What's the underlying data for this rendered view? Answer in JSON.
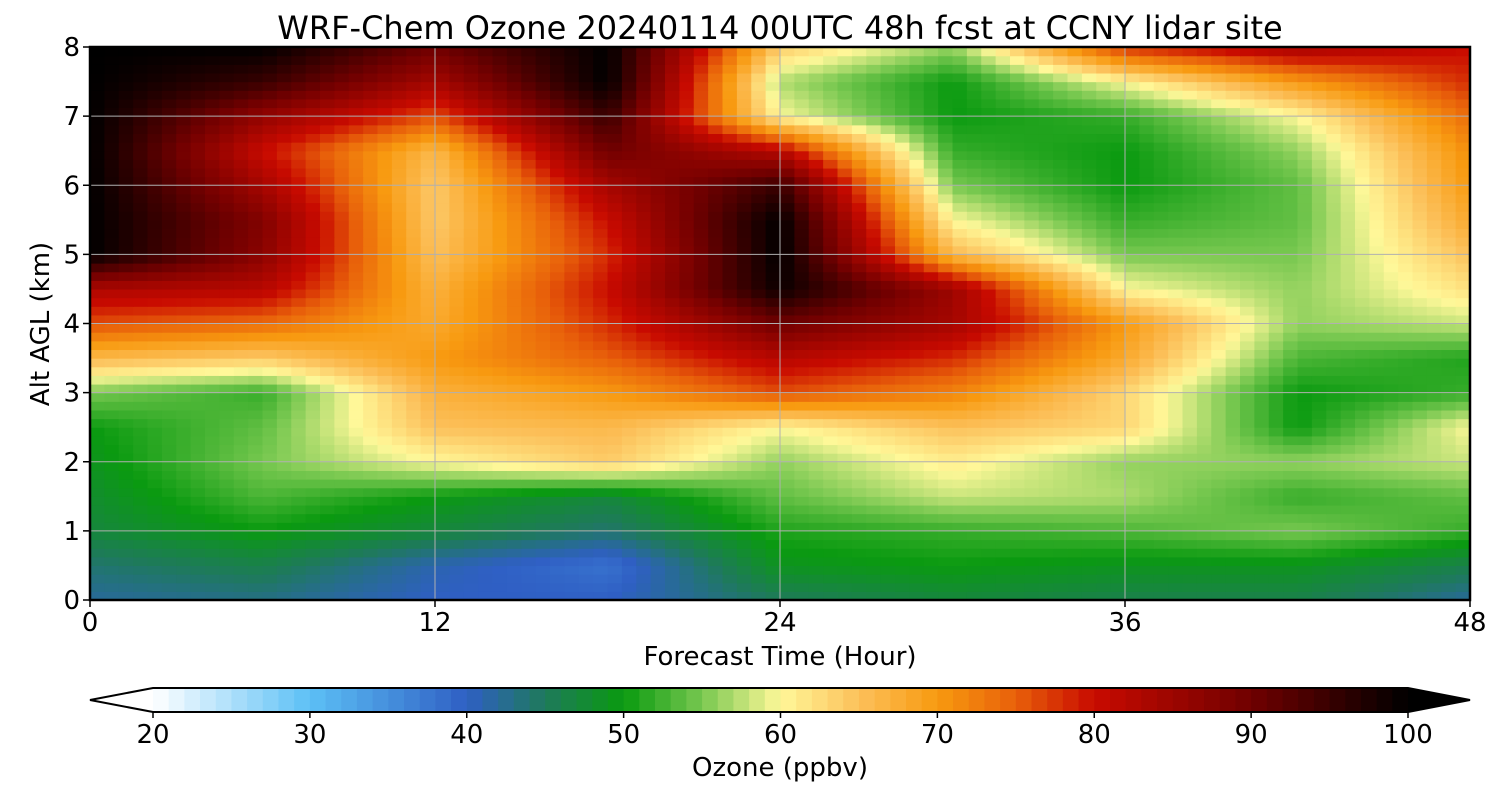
{
  "chart_data": {
    "type": "heatmap",
    "title": "WRF-Chem Ozone  20240114 00UTC 48h fcst at CCNY lidar site",
    "xlabel": "Forecast Time (Hour)",
    "ylabel": "Alt AGL (km)",
    "xlim": [
      0,
      48
    ],
    "ylim": [
      0,
      8
    ],
    "x_ticks": [
      "0",
      "12",
      "24",
      "36",
      "48"
    ],
    "y_ticks": [
      "0",
      "1",
      "2",
      "3",
      "4",
      "5",
      "6",
      "7",
      "8"
    ],
    "grid": true,
    "colorbar": {
      "label": "Ozone  (ppbv)",
      "range": [
        20,
        100
      ],
      "ticks": [
        "20",
        "30",
        "40",
        "50",
        "60",
        "70",
        "80",
        "90",
        "100"
      ],
      "extend": "both",
      "stops": [
        {
          "value": 20,
          "color": "#ffffff"
        },
        {
          "value": 30,
          "color": "#5cc0f5"
        },
        {
          "value": 40,
          "color": "#2f5fc4"
        },
        {
          "value": 45,
          "color": "#1e7a5a"
        },
        {
          "value": 50,
          "color": "#0a9a10"
        },
        {
          "value": 55,
          "color": "#78c850"
        },
        {
          "value": 60,
          "color": "#fff899"
        },
        {
          "value": 65,
          "color": "#fcc05a"
        },
        {
          "value": 70,
          "color": "#f89a10"
        },
        {
          "value": 75,
          "color": "#e8600a"
        },
        {
          "value": 80,
          "color": "#c80a00"
        },
        {
          "value": 90,
          "color": "#700000"
        },
        {
          "value": 100,
          "color": "#000000"
        }
      ]
    },
    "hours": [
      0,
      6,
      12,
      18,
      24,
      30,
      36,
      42,
      48
    ],
    "altitudes_km": [
      0,
      0.5,
      1,
      1.5,
      2,
      2.5,
      3,
      3.5,
      4,
      4.5,
      5,
      5.5,
      6,
      6.5,
      7,
      7.5,
      8
    ],
    "ozone_ppbv": [
      [
        42,
        43,
        40,
        40,
        45,
        47,
        46,
        46,
        42
      ],
      [
        44,
        46,
        41,
        38,
        49,
        50,
        49,
        49,
        46
      ],
      [
        47,
        50,
        47,
        44,
        51,
        52,
        53,
        55,
        52
      ],
      [
        48,
        53,
        50,
        47,
        54,
        58,
        57,
        52,
        54
      ],
      [
        49,
        55,
        60,
        64,
        56,
        61,
        56,
        56,
        58
      ],
      [
        50,
        54,
        65,
        66,
        60,
        65,
        63,
        50,
        60
      ],
      [
        55,
        52,
        67,
        70,
        76,
        72,
        63,
        50,
        52
      ],
      [
        66,
        64,
        70,
        75,
        82,
        78,
        68,
        53,
        51
      ],
      [
        76,
        74,
        68,
        78,
        90,
        84,
        70,
        56,
        58
      ],
      [
        83,
        82,
        67,
        80,
        99,
        85,
        60,
        56,
        62
      ],
      [
        100,
        87,
        65,
        78,
        100,
        66,
        55,
        55,
        65
      ],
      [
        100,
        88,
        64,
        80,
        100,
        60,
        52,
        54,
        68
      ],
      [
        100,
        84,
        64,
        84,
        95,
        55,
        50,
        54,
        70
      ],
      [
        100,
        80,
        66,
        90,
        82,
        52,
        50,
        56,
        71
      ],
      [
        100,
        86,
        76,
        95,
        60,
        50,
        52,
        60,
        74
      ],
      [
        100,
        95,
        84,
        100,
        57,
        50,
        60,
        70,
        78
      ],
      [
        100,
        100,
        90,
        100,
        64,
        56,
        78,
        84,
        80
      ]
    ]
  }
}
